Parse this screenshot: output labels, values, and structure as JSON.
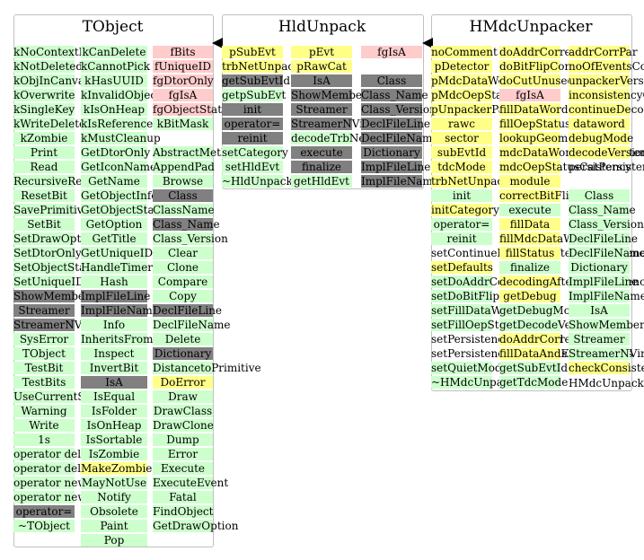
{
  "titles": {
    "tobject": "TObject",
    "hldunpack": "HldUnpack",
    "hmdcunpacker": "HMdcUnpacker"
  },
  "columns": {
    "t1": {
      "items": [
        {
          "t": "kNoContextMenu",
          "c": "g"
        },
        {
          "t": "kNotDeleted",
          "c": "g"
        },
        {
          "t": "kObjInCanvas",
          "c": "g"
        },
        {
          "t": "kOverwrite",
          "c": "g"
        },
        {
          "t": "kSingleKey",
          "c": "g"
        },
        {
          "t": "kWriteDelete",
          "c": "g"
        },
        {
          "t": "kZombie",
          "c": "g"
        },
        {
          "t": "Print",
          "c": "g"
        },
        {
          "t": "Read",
          "c": "g"
        },
        {
          "t": "RecursiveRemove",
          "c": "g"
        },
        {
          "t": "ResetBit",
          "c": "g"
        },
        {
          "t": "SavePrimitive",
          "c": "g"
        },
        {
          "t": "SetBit",
          "c": "g"
        },
        {
          "t": "SetDrawOption",
          "c": "g"
        },
        {
          "t": "SetDtorOnly",
          "c": "g"
        },
        {
          "t": "SetObjectStat",
          "c": "g"
        },
        {
          "t": "SetUniqueID",
          "c": "g"
        },
        {
          "t": "ShowMembers",
          "c": "d"
        },
        {
          "t": "Streamer",
          "c": "d"
        },
        {
          "t": "StreamerNVirtual",
          "c": "d"
        },
        {
          "t": "SysError",
          "c": "g"
        },
        {
          "t": "TObject",
          "c": "g"
        },
        {
          "t": "TestBit",
          "c": "g"
        },
        {
          "t": "TestBits",
          "c": "g"
        },
        {
          "t": "UseCurrentStyle",
          "c": "g"
        },
        {
          "t": "Warning",
          "c": "g"
        },
        {
          "t": "Write",
          "c": "g"
        },
        {
          "t": "1s",
          "c": "g"
        },
        {
          "t": "operator delete",
          "c": "g"
        },
        {
          "t": "operator delete[]",
          "c": "g"
        },
        {
          "t": "operator new",
          "c": "g"
        },
        {
          "t": "operator new[]",
          "c": "g"
        },
        {
          "t": "operator=",
          "c": "d"
        },
        {
          "t": "~TObject",
          "c": "g"
        }
      ]
    },
    "t2": {
      "items": [
        {
          "t": "kCanDelete",
          "c": "g"
        },
        {
          "t": "kCannotPick",
          "c": "g"
        },
        {
          "t": "kHasUUID",
          "c": "g"
        },
        {
          "t": "kInvalidObject",
          "c": "g"
        },
        {
          "t": "kIsOnHeap",
          "c": "g"
        },
        {
          "t": "kIsReferenced",
          "c": "g"
        },
        {
          "t": "kMustCleanup",
          "c": "g"
        },
        {
          "t": "GetDtorOnly",
          "c": "g"
        },
        {
          "t": "GetIconName",
          "c": "g"
        },
        {
          "t": "GetName",
          "c": "g"
        },
        {
          "t": "GetObjectInfo",
          "c": "g"
        },
        {
          "t": "GetObjectStat",
          "c": "g"
        },
        {
          "t": "GetOption",
          "c": "g"
        },
        {
          "t": "GetTitle",
          "c": "g"
        },
        {
          "t": "GetUniqueID",
          "c": "g"
        },
        {
          "t": "HandleTimer",
          "c": "g"
        },
        {
          "t": "Hash",
          "c": "g"
        },
        {
          "t": "ImplFileLine",
          "c": "d"
        },
        {
          "t": "ImplFileName",
          "c": "d"
        },
        {
          "t": "Info",
          "c": "g"
        },
        {
          "t": "InheritsFrom",
          "c": "g"
        },
        {
          "t": "Inspect",
          "c": "g"
        },
        {
          "t": "InvertBit",
          "c": "g"
        },
        {
          "t": "IsA",
          "c": "d"
        },
        {
          "t": "IsEqual",
          "c": "g"
        },
        {
          "t": "IsFolder",
          "c": "g"
        },
        {
          "t": "IsOnHeap",
          "c": "g"
        },
        {
          "t": "IsSortable",
          "c": "g"
        },
        {
          "t": "IsZombie",
          "c": "g"
        },
        {
          "t": "MakeZombie",
          "c": "y"
        },
        {
          "t": "MayNotUse",
          "c": "g"
        },
        {
          "t": "Notify",
          "c": "g"
        },
        {
          "t": "Obsolete",
          "c": "g"
        },
        {
          "t": "Paint",
          "c": "g"
        },
        {
          "t": "Pop",
          "c": "g"
        }
      ]
    },
    "t3a": {
      "items": [
        {
          "t": "fBits",
          "c": "p"
        },
        {
          "t": "fUniqueID",
          "c": "p"
        },
        {
          "t": "fgDtorOnly",
          "c": "p"
        },
        {
          "t": "fgIsA",
          "c": "p"
        },
        {
          "t": "fgObjectStat",
          "c": "p"
        },
        {
          "t": "kBitMask",
          "c": "g"
        }
      ]
    },
    "t3b": {
      "items": [
        {
          "t": "AbstractMethod",
          "c": "g"
        },
        {
          "t": "AppendPad",
          "c": "g"
        },
        {
          "t": "Browse",
          "c": "g"
        },
        {
          "t": "Class",
          "c": "d"
        },
        {
          "t": "ClassName",
          "c": "g"
        },
        {
          "t": "Class_Name",
          "c": "d"
        },
        {
          "t": "Class_Version",
          "c": "g"
        },
        {
          "t": "Clear",
          "c": "g"
        },
        {
          "t": "Clone",
          "c": "g"
        },
        {
          "t": "Compare",
          "c": "g"
        },
        {
          "t": "Copy",
          "c": "g"
        },
        {
          "t": "DeclFileLine",
          "c": "d"
        },
        {
          "t": "DeclFileName",
          "c": "g"
        },
        {
          "t": "Delete",
          "c": "g"
        },
        {
          "t": "Dictionary",
          "c": "d"
        },
        {
          "t": "DistancetoPrimitive",
          "c": "g"
        },
        {
          "t": "DoError",
          "c": "y"
        },
        {
          "t": "Draw",
          "c": "g"
        },
        {
          "t": "DrawClass",
          "c": "g"
        },
        {
          "t": "DrawClone",
          "c": "g"
        },
        {
          "t": "Dump",
          "c": "g"
        },
        {
          "t": "Error",
          "c": "g"
        },
        {
          "t": "Execute",
          "c": "g"
        },
        {
          "t": "ExecuteEvent",
          "c": "g"
        },
        {
          "t": "Fatal",
          "c": "g"
        },
        {
          "t": "FindObject",
          "c": "g"
        },
        {
          "t": "GetDrawOption",
          "c": "g"
        }
      ]
    },
    "h1": {
      "items": [
        {
          "t": "pSubEvt",
          "c": "y"
        },
        {
          "t": "trbNetUnpacker",
          "c": "y"
        },
        {
          "t": "getSubEvtId",
          "c": "d"
        },
        {
          "t": "getpSubEvt",
          "c": "g"
        },
        {
          "t": "init",
          "c": "d"
        },
        {
          "t": "operator=",
          "c": "d"
        },
        {
          "t": "reinit",
          "c": "d"
        },
        {
          "t": "setCategory",
          "c": "g"
        },
        {
          "t": "setHldEvt",
          "c": "g"
        },
        {
          "t": "~HldUnpack",
          "c": "g"
        }
      ]
    },
    "h2": {
      "items": [
        {
          "t": "pEvt",
          "c": "y"
        },
        {
          "t": "pRawCat",
          "c": "y"
        },
        {
          "t": "IsA",
          "c": "d"
        },
        {
          "t": "ShowMembers",
          "c": "d"
        },
        {
          "t": "Streamer",
          "c": "d"
        },
        {
          "t": "StreamerNVirtual",
          "c": "d"
        },
        {
          "t": "decodeTrbNet",
          "c": "g"
        },
        {
          "t": "execute",
          "c": "d"
        },
        {
          "t": "finalize",
          "c": "d"
        },
        {
          "t": "getHldEvt",
          "c": "g"
        }
      ]
    },
    "h3": {
      "items": [
        {
          "t": "fgIsA",
          "c": "p"
        },
        {
          "t": "",
          "c": "w"
        },
        {
          "t": "Class",
          "c": "d"
        },
        {
          "t": "Class_Name",
          "c": "d"
        },
        {
          "t": "Class_Version",
          "c": "d"
        },
        {
          "t": "DeclFileLine",
          "c": "d"
        },
        {
          "t": "DeclFileName",
          "c": "d"
        },
        {
          "t": "Dictionary",
          "c": "d"
        },
        {
          "t": "ImplFileLine",
          "c": "d"
        },
        {
          "t": "ImplFileName",
          "c": "d"
        }
      ]
    },
    "m1": {
      "items": [
        {
          "t": "noComment",
          "c": "y"
        },
        {
          "t": "pDetector",
          "c": "y"
        },
        {
          "t": "pMdcDataWord",
          "c": "y"
        },
        {
          "t": "pMdcOepStatus",
          "c": "y"
        },
        {
          "t": "pUnpackerPar",
          "c": "y"
        },
        {
          "t": "rawc",
          "c": "y"
        },
        {
          "t": "sector",
          "c": "y"
        },
        {
          "t": "subEvtId",
          "c": "y"
        },
        {
          "t": "tdcMode",
          "c": "y"
        },
        {
          "t": "trbNetUnpacker",
          "c": "y"
        },
        {
          "t": "init",
          "c": "g"
        },
        {
          "t": "initCategory",
          "c": "y"
        },
        {
          "t": "operator=",
          "c": "g"
        },
        {
          "t": "reinit",
          "c": "g"
        },
        {
          "t": "setContinueDecodingAfterInconsistency",
          "c": "w"
        },
        {
          "t": "setDefaults",
          "c": "y"
        },
        {
          "t": "setDoAddrCorrection",
          "c": "g"
        },
        {
          "t": "setDoBitFlipCorrection",
          "c": "g"
        },
        {
          "t": "setFillDataWord",
          "c": "g"
        },
        {
          "t": "setFillOepStatus",
          "c": "g"
        },
        {
          "t": "setPersistencyDataword",
          "c": "w"
        },
        {
          "t": "setPersistencyOepStatusData",
          "c": "w"
        },
        {
          "t": "setQuietMode",
          "c": "g"
        },
        {
          "t": "~HMdcUnpacker",
          "c": "g"
        }
      ]
    },
    "m2": {
      "items": [
        {
          "t": "doAddrCorrection",
          "c": "y"
        },
        {
          "t": "doBitFlipCorrection",
          "c": "y"
        },
        {
          "t": "doCutUnusedChannels",
          "c": "y"
        },
        {
          "t": "fgIsA",
          "c": "p"
        },
        {
          "t": "fillDataWord",
          "c": "y"
        },
        {
          "t": "fillOepStatus",
          "c": "y"
        },
        {
          "t": "lookupGeom",
          "c": "y"
        },
        {
          "t": "mdcDataWordCatPersistency",
          "c": "y"
        },
        {
          "t": "mdcOepStatusCatPersistency",
          "c": "y"
        },
        {
          "t": "module",
          "c": "y"
        },
        {
          "t": "correctBitFlip",
          "c": "y"
        },
        {
          "t": "execute",
          "c": "g"
        },
        {
          "t": "fillData",
          "c": "y"
        },
        {
          "t": "fillMdcDataWord",
          "c": "y"
        },
        {
          "t": "fillStatus",
          "c": "y"
        },
        {
          "t": "finalize",
          "c": "g"
        },
        {
          "t": "decodingAfterInconsistency",
          "c": "y"
        },
        {
          "t": "getDebug",
          "c": "y"
        },
        {
          "t": "getDebugMode",
          "c": "g"
        },
        {
          "t": "getDecodeVersion",
          "c": "g"
        },
        {
          "t": "doAddrCorrection",
          "c": "y"
        },
        {
          "t": "fillDataAndExistingSlots",
          "c": "y"
        },
        {
          "t": "getSubEvtId",
          "c": "g"
        },
        {
          "t": "getTdcMode",
          "c": "g"
        }
      ]
    },
    "m3": {
      "items": [
        {
          "t": "addrCorrPar",
          "c": "y"
        },
        {
          "t": "noOfEventsCounter",
          "c": "y"
        },
        {
          "t": "unpackerVersion",
          "c": "y"
        },
        {
          "t": "inconsistencyCheck",
          "c": "y"
        },
        {
          "t": "continueDecodingAfterInconsistency",
          "c": "y"
        },
        {
          "t": "dataword",
          "c": "y"
        },
        {
          "t": "debugMode",
          "c": "y"
        },
        {
          "t": "decodeVersion",
          "c": "y"
        },
        {
          "t": "persistency",
          "c": "w"
        },
        {
          "t": "",
          "c": "w"
        },
        {
          "t": "Class",
          "c": "g"
        },
        {
          "t": "Class_Name",
          "c": "g"
        },
        {
          "t": "Class_Version",
          "c": "g"
        },
        {
          "t": "DeclFileLine",
          "c": "g"
        },
        {
          "t": "DeclFileName",
          "c": "g"
        },
        {
          "t": "Dictionary",
          "c": "g"
        },
        {
          "t": "ImplFileLine",
          "c": "g"
        },
        {
          "t": "ImplFileName",
          "c": "g"
        },
        {
          "t": "IsA",
          "c": "g"
        },
        {
          "t": "ShowMembers",
          "c": "g"
        },
        {
          "t": "Streamer",
          "c": "g"
        },
        {
          "t": "StreamerNVirtual",
          "c": "g"
        },
        {
          "t": "checkConsistency",
          "c": "y"
        }
      ]
    },
    "m4": {
      "items": [
        {
          "t": "HMdcUnpacker",
          "c": "w"
        }
      ]
    }
  }
}
